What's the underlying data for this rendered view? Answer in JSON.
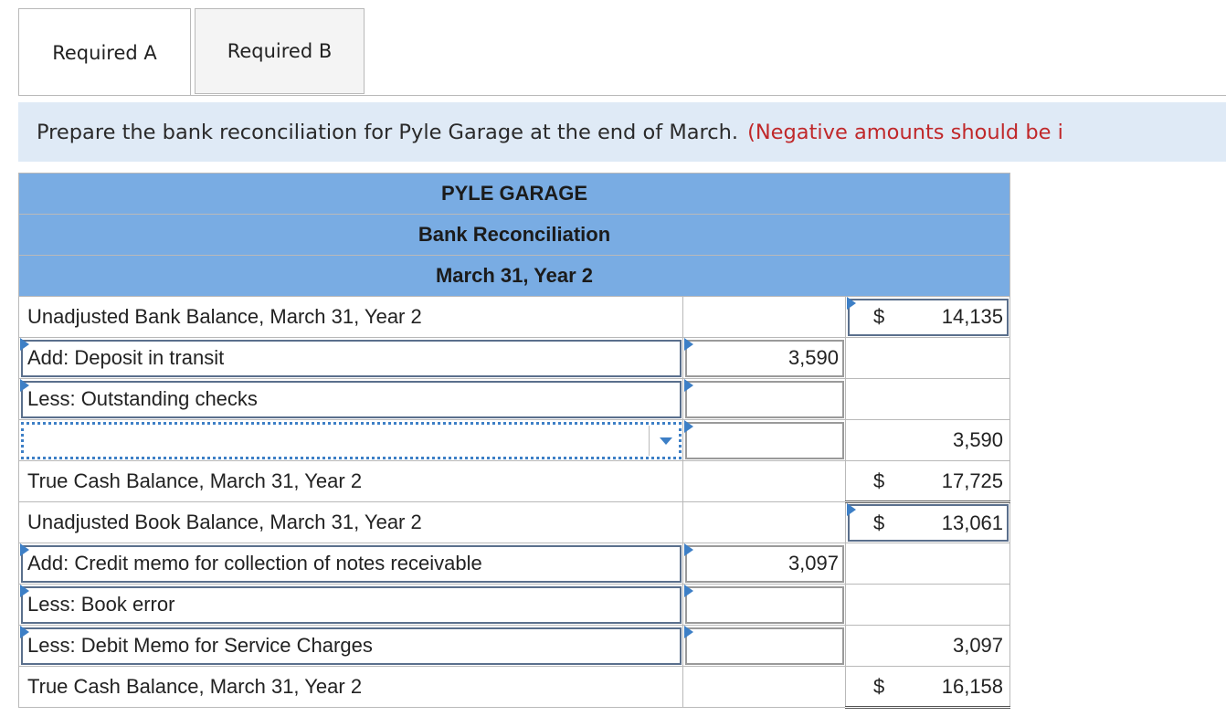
{
  "tabs": [
    {
      "label": "Required A",
      "active": true
    },
    {
      "label": "Required B",
      "active": false
    }
  ],
  "instruction": {
    "text": "Prepare the bank reconciliation for Pyle Garage at the end of March.",
    "note": "(Negative amounts should be i"
  },
  "table": {
    "title": "PYLE GARAGE",
    "subtitle": "Bank Reconciliation",
    "date": "March 31, Year 2",
    "rows": [
      {
        "label": "Unadjusted Bank Balance, March 31, Year 2",
        "mid": "",
        "dollar": "$",
        "right": "14,135"
      },
      {
        "label": "Add: Deposit in transit",
        "mid": "3,590",
        "dollar": "",
        "right": ""
      },
      {
        "label": "Less: Outstanding checks",
        "mid": "",
        "dollar": "",
        "right": ""
      },
      {
        "label": "",
        "mid": "",
        "dollar": "",
        "right": "3,590"
      },
      {
        "label": "True Cash Balance, March 31, Year 2",
        "mid": "",
        "dollar": "$",
        "right": "17,725"
      },
      {
        "label": "Unadjusted Book Balance, March 31, Year 2",
        "mid": "",
        "dollar": "$",
        "right": "13,061"
      },
      {
        "label": "Add: Credit memo for collection of notes receivable",
        "mid": "3,097",
        "dollar": "",
        "right": ""
      },
      {
        "label": "Less: Book error",
        "mid": "",
        "dollar": "",
        "right": ""
      },
      {
        "label": "Less: Debit Memo for Service Charges",
        "mid": "",
        "dollar": "",
        "right": "3,097"
      },
      {
        "label": "True Cash Balance, March 31, Year 2",
        "mid": "",
        "dollar": "$",
        "right": "16,158"
      }
    ]
  }
}
